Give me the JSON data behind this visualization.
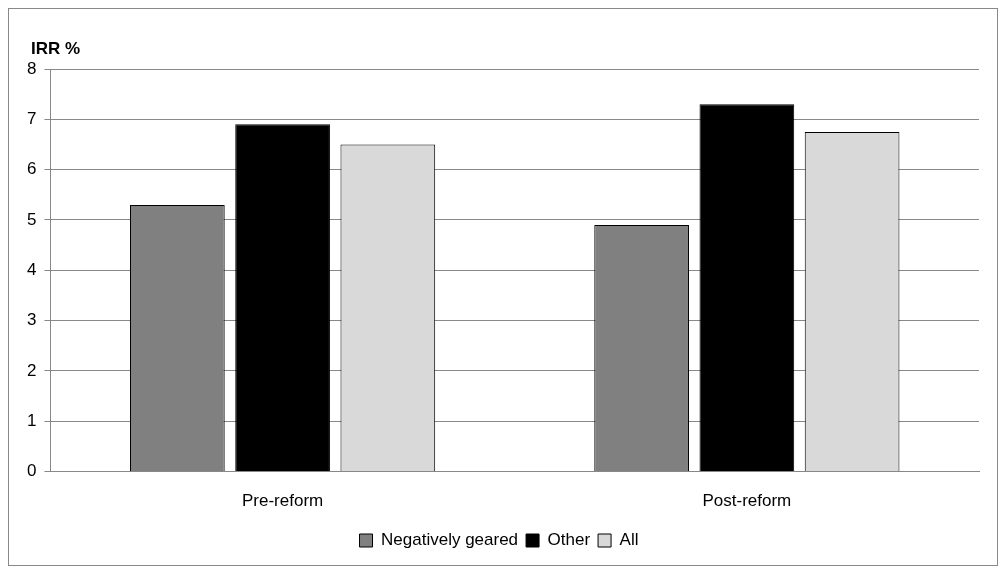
{
  "chart_data": {
    "type": "bar",
    "ylabel": "IRR %",
    "categories": [
      "Pre-reform",
      "Post-reform"
    ],
    "series": [
      {
        "name": "Negatively geared",
        "color": "#808080",
        "values": [
          5.3,
          4.9
        ]
      },
      {
        "name": "Other",
        "color": "#000000",
        "values": [
          6.9,
          7.3
        ]
      },
      {
        "name": "All",
        "color": "#d9d9d9",
        "values": [
          6.5,
          6.75
        ]
      }
    ],
    "ylim": [
      0,
      8
    ],
    "yticks": [
      0,
      1,
      2,
      3,
      4,
      5,
      6,
      7,
      8
    ],
    "grid": "y",
    "legend": "bottom"
  }
}
